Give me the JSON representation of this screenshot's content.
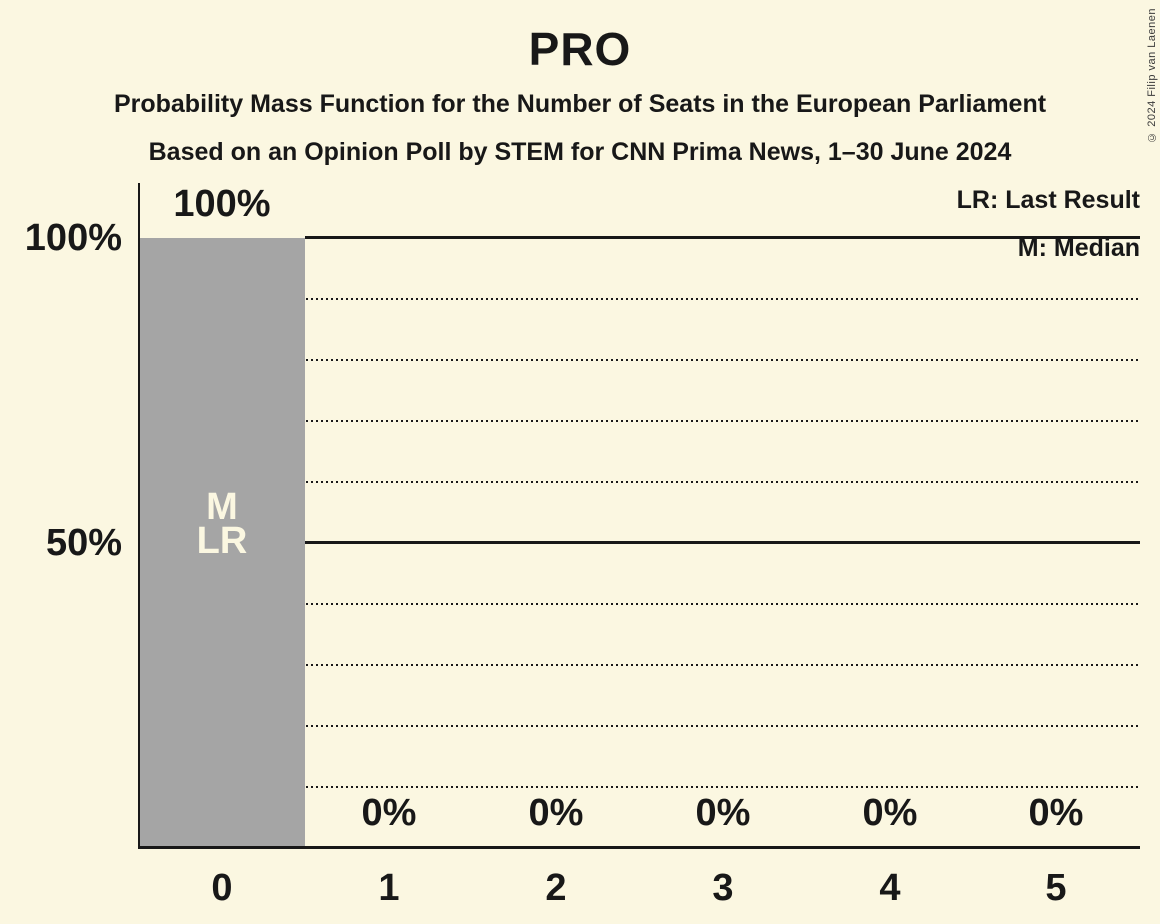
{
  "copyright": "© 2024 Filip van Laenen",
  "colors": {
    "background": "#FBF7E1",
    "bar": "#A5A5A5",
    "text": "#181818",
    "bar_annotation_text": "#FBF7E1"
  },
  "chart_data": {
    "type": "bar",
    "title": "PRO",
    "subtitle": "Probability Mass Function for the Number of Seats in the European Parliament",
    "source_line": "Based on an Opinion Poll by STEM for CNN Prima News, 1–30 June 2024",
    "categories": [
      "0",
      "1",
      "2",
      "3",
      "4",
      "5"
    ],
    "values": [
      100,
      0,
      0,
      0,
      0,
      0
    ],
    "value_labels": [
      "100%",
      "0%",
      "0%",
      "0%",
      "0%",
      "0%"
    ],
    "ylim": [
      0,
      100
    ],
    "y_ticks": [
      {
        "value": 100,
        "label": "100%"
      },
      {
        "value": 50,
        "label": "50%"
      }
    ],
    "gridlines": {
      "solid_at": [
        100,
        50
      ],
      "dotted_at": [
        90,
        80,
        70,
        60,
        40,
        30,
        20,
        10
      ]
    },
    "legend": [
      {
        "label": "LR: Last Result"
      },
      {
        "label": "M: Median"
      }
    ],
    "legend_position": "top-right",
    "bar_annotations": [
      {
        "category": "0",
        "median_label": "M",
        "last_result_label": "LR"
      }
    ]
  }
}
